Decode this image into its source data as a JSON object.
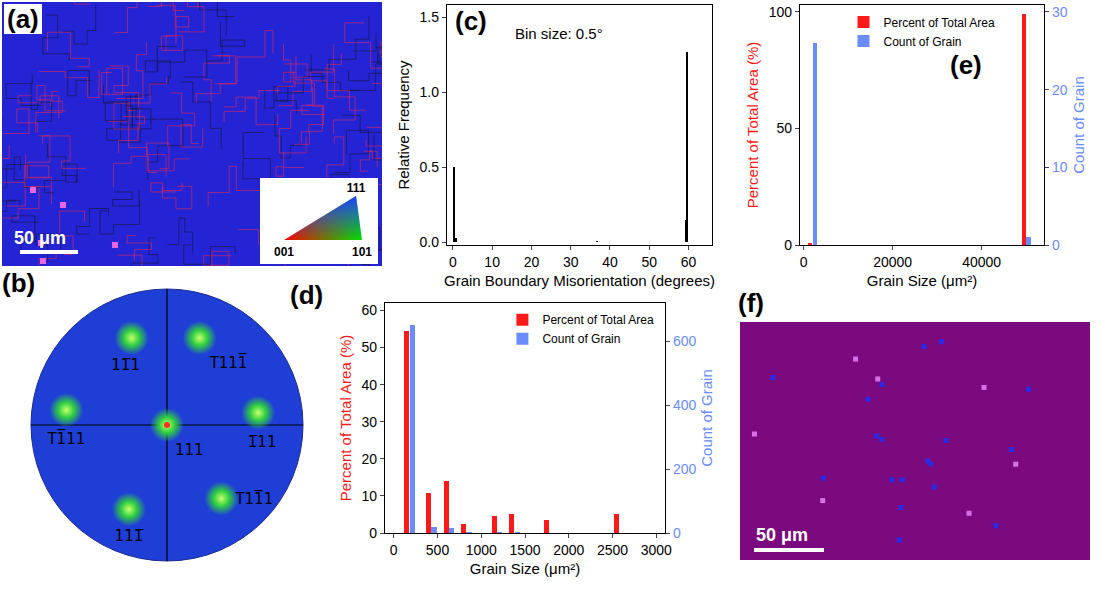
{
  "maps": [
    {
      "label": "(a)",
      "type": "orientation_map",
      "color": "#2424d4",
      "scale_bar": "50 μm",
      "inset_labels": [
        "111",
        "001",
        "101"
      ]
    },
    {
      "label": "(f)",
      "type": "grain_map",
      "color": "#7a0a7e",
      "scale_bar": "50 μm"
    }
  ],
  "pole_figure": {
    "label": "(b)",
    "type": "pole_figure",
    "color": "#1e3ed6",
    "poles": [
      "11̅1",
      "T111̅",
      "T1̅11",
      "111",
      "1̅11",
      "111̅",
      "T11̅1"
    ]
  },
  "chart_data": [
    {
      "label": "(c)",
      "type": "bar",
      "annotations": [
        "Bin size: 0.5°"
      ],
      "x_label": "Grain Boundary Misorientation (degrees)",
      "y_label": "Relative Frequency",
      "x": [
        0.25,
        0.75,
        36.75,
        59.25,
        59.75
      ],
      "values": [
        0.5,
        0.03,
        0.01,
        0.15,
        1.27
      ],
      "color": "#000000",
      "xlim": [
        -1.5,
        66
      ],
      "xticks": [
        0,
        10,
        20,
        30,
        40,
        50,
        60
      ],
      "ylim": [
        -0.02,
        1.58
      ],
      "yticks": [
        {
          "value": 0,
          "label": "0.0"
        },
        {
          "value": 0.5,
          "label": "0.5"
        },
        {
          "value": 1,
          "label": "1.0"
        },
        {
          "value": 1.5,
          "label": "1.5"
        }
      ]
    },
    {
      "label": "(d)",
      "type": "bar",
      "legend": "upper right",
      "x_label": "Grain Size (μm²)",
      "y_label": "Percent of Total Area (%)",
      "y2_label": "Count of Grain",
      "xlim": [
        -100,
        3100
      ],
      "xticks": [
        0,
        500,
        1000,
        1500,
        2000,
        2500,
        3000
      ],
      "ylim": [
        0,
        62
      ],
      "yticks": [
        0,
        10,
        20,
        30,
        40,
        50,
        60
      ],
      "y2lim": [
        0,
        719.2
      ],
      "y2ticks": [
        0,
        200,
        400,
        600
      ],
      "series": [
        {
          "name": "Percent of Total Area",
          "color": "#ff1a1a",
          "x": [
            150,
            400,
            600,
            800,
            1150,
            1350,
            1750,
            2550
          ],
          "values": [
            54.5,
            10.8,
            14,
            2.5,
            4.7,
            5,
            3.5,
            5
          ]
        },
        {
          "name": "Count of Grain",
          "color": "#6b8cff",
          "axis": "y2",
          "x": [
            210,
            460,
            660,
            860,
            1210,
            1410,
            1810,
            2610
          ],
          "values": [
            650,
            20,
            15,
            4,
            2,
            2,
            1,
            1
          ]
        }
      ]
    },
    {
      "label": "(e)",
      "type": "bar",
      "legend": "upper center",
      "x_label": "Grain Size (μm²)",
      "y_label": "Percent of Total Area (%)",
      "y2_label": "Count of Grain",
      "xlim": [
        -800,
        54000
      ],
      "xticks": [
        0,
        20000,
        40000
      ],
      "ylim": [
        0,
        103
      ],
      "yticks": [
        0,
        50,
        100
      ],
      "y2lim": [
        0,
        30.9
      ],
      "y2ticks": [
        0,
        10,
        20,
        30
      ],
      "series": [
        {
          "name": "Percent of Total Area",
          "color": "#ff1a1a",
          "x": [
            1500,
            49500
          ],
          "values": [
            1,
            99
          ]
        },
        {
          "name": "Count of Grain",
          "color": "#6b8cff",
          "axis": "y2",
          "x": [
            2500,
            50500
          ],
          "values": [
            26,
            1
          ]
        }
      ]
    }
  ]
}
